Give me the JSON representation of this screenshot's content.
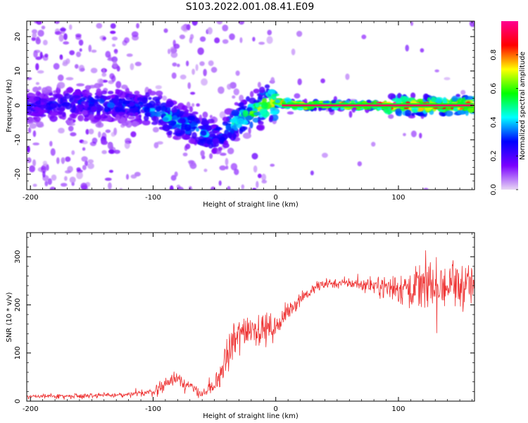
{
  "title": "S103.2022.001.08.41.E09",
  "chart_data": [
    {
      "type": "heatmap",
      "xlabel": "Height of straight line (km)",
      "ylabel": "Frequency (Hz)",
      "xlim": [
        -203,
        162
      ],
      "ylim": [
        -24.5,
        24.5
      ],
      "xticks": [
        -200,
        -100,
        0,
        100
      ],
      "yticks": [
        -20,
        -10,
        0,
        10,
        20
      ],
      "colorbar": {
        "label": "Normalized spectral amplitude",
        "range": [
          0.0,
          1.0
        ],
        "ticks": [
          0.0,
          0.2,
          0.4,
          0.6,
          0.8
        ],
        "colors": [
          "#e8d8f4",
          "#7a00ff",
          "#0000ff",
          "#00ffff",
          "#00ff00",
          "#ffff00",
          "#ff0000",
          "#ff0090"
        ]
      },
      "ridge_profile": {
        "x": [
          -200,
          -180,
          -160,
          -140,
          -120,
          -100,
          -90,
          -80,
          -70,
          -60,
          -50,
          -40,
          -30,
          -20,
          -10,
          0,
          20,
          50,
          100,
          162
        ],
        "y": [
          0,
          0,
          1,
          0,
          0,
          -1,
          -3,
          -5,
          -6,
          -8,
          -9,
          -7,
          -4,
          -2,
          0,
          1,
          0,
          0,
          0,
          0
        ],
        "amplitude": [
          0.25,
          0.3,
          0.3,
          0.35,
          0.3,
          0.4,
          0.45,
          0.45,
          0.4,
          0.45,
          0.35,
          0.4,
          0.5,
          0.6,
          0.7,
          0.8,
          0.9,
          1.0,
          1.0,
          0.9
        ]
      }
    },
    {
      "type": "line",
      "xlabel": "Height of straight line (km)",
      "ylabel": "SNR (10 * v/v)",
      "xlim": [
        -203,
        162
      ],
      "ylim": [
        0,
        350
      ],
      "xticks": [
        -200,
        -100,
        0,
        100
      ],
      "yticks": [
        0,
        100,
        200,
        300
      ],
      "line_color": "#ee3333",
      "envelope": {
        "x": [
          -203,
          -180,
          -150,
          -120,
          -100,
          -90,
          -80,
          -70,
          -60,
          -50,
          -40,
          -30,
          -20,
          -10,
          0,
          10,
          20,
          30,
          40,
          50,
          60,
          80,
          100,
          120,
          140,
          162
        ],
        "y": [
          10,
          10,
          12,
          13,
          20,
          35,
          50,
          30,
          15,
          30,
          90,
          140,
          155,
          150,
          155,
          185,
          215,
          230,
          245,
          245,
          245,
          240,
          235,
          240,
          240,
          240
        ],
        "noise": [
          4,
          4,
          5,
          5,
          8,
          14,
          16,
          12,
          8,
          16,
          35,
          40,
          30,
          28,
          22,
          18,
          14,
          12,
          10,
          10,
          10,
          15,
          30,
          45,
          50,
          40
        ]
      }
    }
  ]
}
